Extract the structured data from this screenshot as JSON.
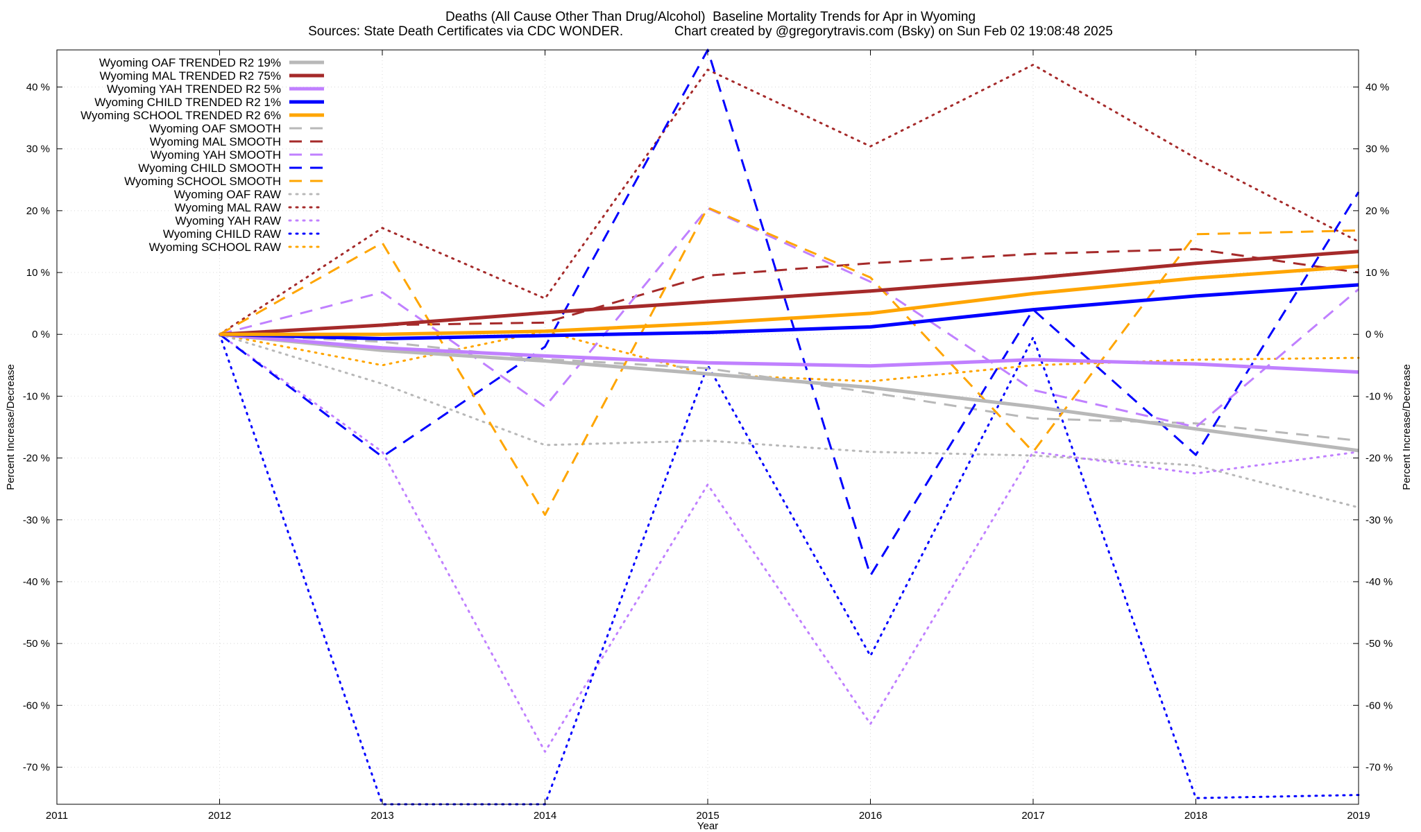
{
  "chart_data": {
    "type": "line",
    "title": "Deaths (All Cause Other Than Drug/Alcohol)  Baseline Mortality Trends for Apr in Wyoming",
    "subtitle": "Sources: State Death Certificates via CDC WONDER.              Chart created by @gregorytravis.com (Bsky) on Sun Feb 02 19:08:48 2025",
    "xlabel": "Year",
    "ylabel": "Percent Increase/Decrease",
    "y2label": "Percent Increase/Decrease",
    "xlim": [
      2011,
      2019
    ],
    "ylim": [
      -76,
      46
    ],
    "x_ticks": [
      "2011",
      "2012",
      "2013",
      "2014",
      "2015",
      "2016",
      "2017",
      "2018",
      "2019"
    ],
    "y_ticks": [
      {
        "value": 40,
        "label": "40 %"
      },
      {
        "value": 30,
        "label": "30 %"
      },
      {
        "value": 20,
        "label": "20 %"
      },
      {
        "value": 10,
        "label": "10 %"
      },
      {
        "value": 0,
        "label": "0 %"
      },
      {
        "value": -10,
        "label": "-10 %"
      },
      {
        "value": -20,
        "label": "-20 %"
      },
      {
        "value": -30,
        "label": "-30 %"
      },
      {
        "value": -40,
        "label": "-40 %"
      },
      {
        "value": -50,
        "label": "-50 %"
      },
      {
        "value": -60,
        "label": "-60 %"
      },
      {
        "value": -70,
        "label": "-70 %"
      }
    ],
    "grid": true,
    "legend_position": "top-left",
    "x": [
      2012,
      2013,
      2014,
      2015,
      2016,
      2017,
      2018,
      2019
    ],
    "series": [
      {
        "name": "Wyoming OAF TRENDED R2  19%",
        "style": "solid",
        "color": "#b8b8b8",
        "values": [
          0,
          -2.6,
          -4.3,
          -6.4,
          -8.6,
          -11.7,
          -15.3,
          -18.8
        ]
      },
      {
        "name": "Wyoming MAL TRENDED R2  75%",
        "style": "solid",
        "color": "#a52a2a",
        "values": [
          0,
          1.5,
          3.5,
          5.3,
          7.0,
          9.1,
          11.5,
          13.4
        ]
      },
      {
        "name": "Wyoming YAH TRENDED R2   5%",
        "style": "solid",
        "color": "#c080ff",
        "values": [
          0,
          -2.2,
          -3.5,
          -4.6,
          -5.1,
          -4.1,
          -4.8,
          -6.1
        ]
      },
      {
        "name": "Wyoming CHILD TRENDED R2   1%",
        "style": "solid",
        "color": "#0000ff",
        "values": [
          0,
          -0.7,
          -0.2,
          0.3,
          1.2,
          4.0,
          6.2,
          8.0
        ]
      },
      {
        "name": "Wyoming SCHOOL TRENDED R2   6%",
        "style": "solid",
        "color": "#ffa500",
        "values": [
          0,
          0,
          0.5,
          1.8,
          3.4,
          6.6,
          9.1,
          11.0
        ]
      },
      {
        "name": "Wyoming OAF SMOOTH",
        "style": "dashed",
        "color": "#b8b8b8",
        "values": [
          0,
          -1.2,
          -4.0,
          -5.5,
          -9.4,
          -13.6,
          -14.4,
          -17.2
        ]
      },
      {
        "name": "Wyoming MAL SMOOTH",
        "style": "dashed",
        "color": "#a52a2a",
        "values": [
          0,
          1.5,
          1.9,
          9.5,
          11.5,
          13.0,
          13.8,
          10.0
        ]
      },
      {
        "name": "Wyoming YAH SMOOTH",
        "style": "dashed",
        "color": "#c080ff",
        "values": [
          0,
          6.8,
          -11.7,
          20.4,
          8.5,
          -9.0,
          -15.0,
          7.3
        ]
      },
      {
        "name": "Wyoming CHILD SMOOTH",
        "style": "dashed",
        "color": "#0000ff",
        "values": [
          0,
          -19.8,
          -2.0,
          46.0,
          -39.0,
          4.0,
          -19.5,
          23.0
        ]
      },
      {
        "name": "Wyoming SCHOOL SMOOTH",
        "style": "dashed",
        "color": "#ffa500",
        "values": [
          0,
          14.8,
          -29.2,
          20.5,
          9.2,
          -19.0,
          16.2,
          16.8
        ]
      },
      {
        "name": "Wyoming OAF RAW",
        "style": "dotted",
        "color": "#b8b8b8",
        "values": [
          0,
          -8.0,
          -17.9,
          -17.2,
          -19.0,
          -19.6,
          -21.2,
          -28.0
        ]
      },
      {
        "name": "Wyoming MAL RAW",
        "style": "dotted",
        "color": "#a52a2a",
        "values": [
          0,
          17.2,
          5.8,
          42.8,
          30.4,
          43.6,
          28.5,
          15.0
        ]
      },
      {
        "name": "Wyoming YAH RAW",
        "style": "dotted",
        "color": "#c080ff",
        "values": [
          0,
          -19.0,
          -67.5,
          -24.3,
          -63.0,
          -19.0,
          -22.5,
          -19.0
        ]
      },
      {
        "name": "Wyoming CHILD RAW",
        "style": "dotted",
        "color": "#0000ff",
        "values": [
          0,
          -76.0,
          -76.0,
          -5.0,
          -52.0,
          -0.5,
          -75.0,
          -74.5
        ]
      },
      {
        "name": "Wyoming SCHOOL RAW",
        "style": "dotted",
        "color": "#ffa500",
        "values": [
          0,
          -5.0,
          0.5,
          -6.5,
          -7.6,
          -5.0,
          -4.1,
          -3.8
        ]
      }
    ]
  }
}
